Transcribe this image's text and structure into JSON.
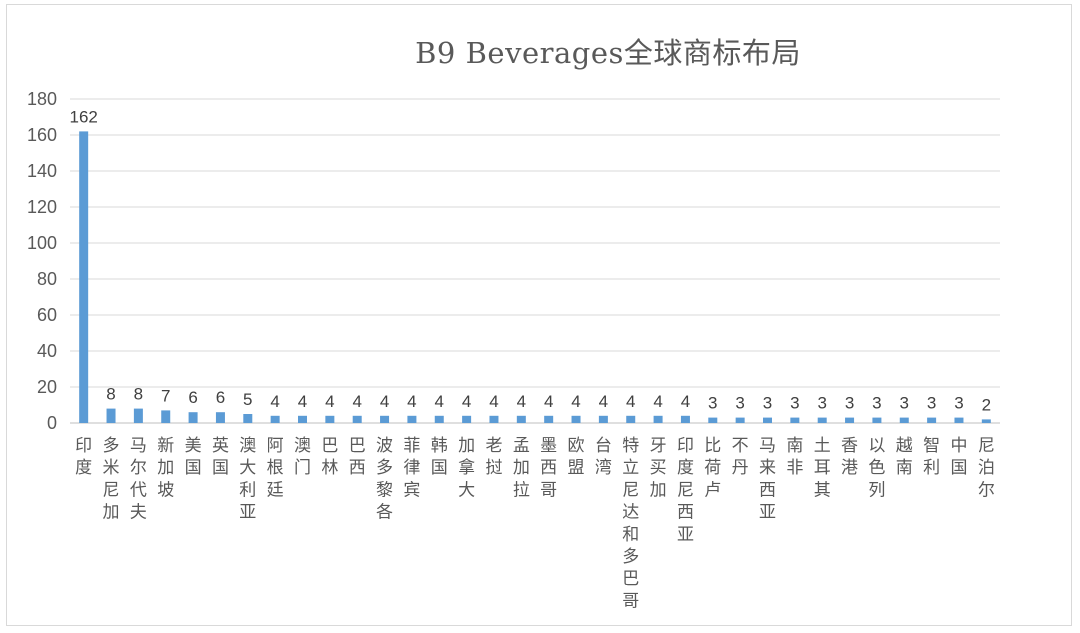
{
  "chart_data": {
    "type": "bar",
    "title": "B9 Beverages全球商标布局",
    "xlabel": "",
    "ylabel": "",
    "ylim": [
      0,
      180
    ],
    "yticks": [
      0,
      20,
      40,
      60,
      80,
      100,
      120,
      140,
      160,
      180
    ],
    "grid": true,
    "legend": "none",
    "bar_color": "#5b9bd5",
    "categories": [
      "印度",
      "多米尼加",
      "马尔代夫",
      "新加坡",
      "美国",
      "英国",
      "澳大利亚",
      "阿根廷",
      "澳门",
      "巴林",
      "巴西",
      "波多黎各",
      "菲律宾",
      "韩国",
      "加拿大",
      "老挝",
      "孟加拉",
      "墨西哥",
      "欧盟",
      "台湾",
      "特立尼达和多巴哥",
      "牙买加",
      "印度尼西亚",
      "比荷卢",
      "不丹",
      "马来西亚",
      "南非",
      "土耳其",
      "香港",
      "以色列",
      "越南",
      "智利",
      "中国",
      "尼泊尔"
    ],
    "values": [
      162,
      8,
      8,
      7,
      6,
      6,
      5,
      4,
      4,
      4,
      4,
      4,
      4,
      4,
      4,
      4,
      4,
      4,
      4,
      4,
      4,
      4,
      4,
      3,
      3,
      3,
      3,
      3,
      3,
      3,
      3,
      3,
      3,
      2
    ]
  }
}
